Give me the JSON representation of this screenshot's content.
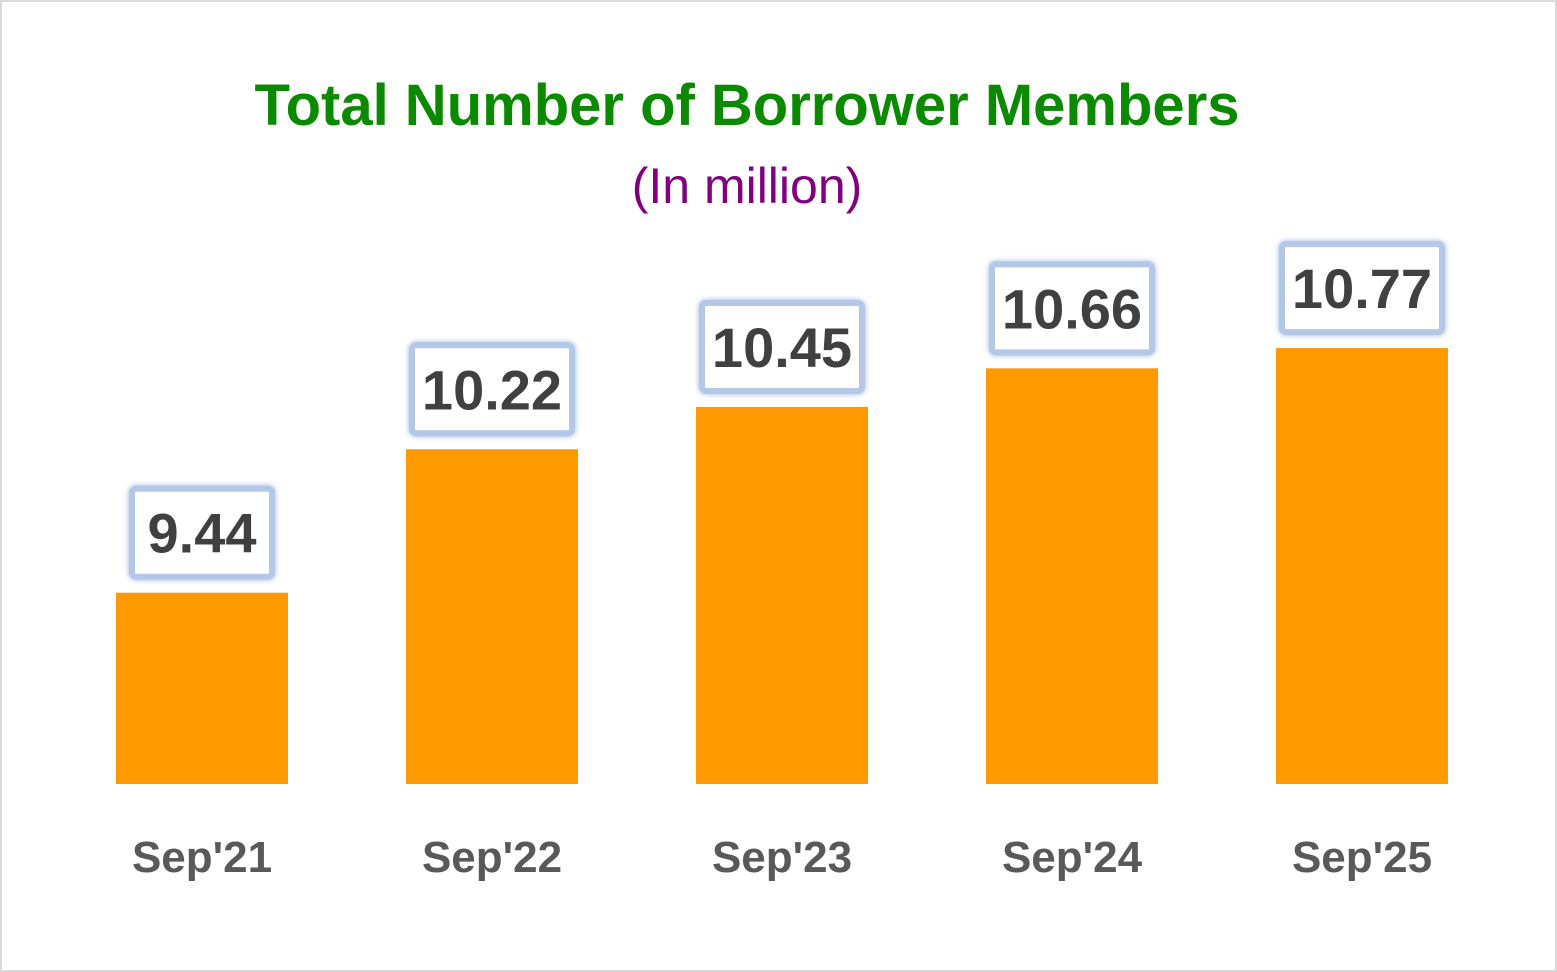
{
  "chart_data": {
    "type": "bar",
    "title": "Total Number of Borrower Members",
    "subtitle": "(In million)",
    "categories": [
      "Sep'21",
      "Sep'22",
      "Sep'23",
      "Sep'24",
      "Sep'25"
    ],
    "values": [
      9.44,
      10.22,
      10.45,
      10.66,
      10.77
    ],
    "value_labels": [
      "9.44",
      "10.22",
      "10.45",
      "10.66",
      "10.77"
    ],
    "xlabel": "",
    "ylabel": "",
    "grid": false,
    "legend": "none",
    "colors": {
      "bar": "#ff9900",
      "title": "#0b8a00",
      "subtitle": "#800080",
      "label_box_border": "#b4c7e7"
    }
  }
}
